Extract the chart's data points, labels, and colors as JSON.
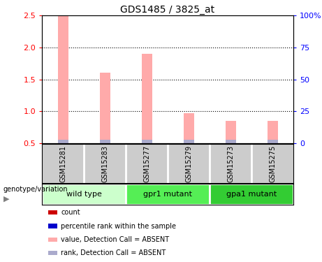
{
  "title": "GDS1485 / 3825_at",
  "samples": [
    "GSM15281",
    "GSM15283",
    "GSM15277",
    "GSM15279",
    "GSM15273",
    "GSM15275"
  ],
  "bar_values": [
    2.5,
    1.6,
    1.9,
    0.97,
    0.85,
    0.85
  ],
  "bar_color": "#ffaaaa",
  "rank_color": "#aaaacc",
  "ylim_left": [
    0.5,
    2.5
  ],
  "yticks_left": [
    0.5,
    1.0,
    1.5,
    2.0,
    2.5
  ],
  "ylim_right": [
    0,
    100
  ],
  "yticks_right": [
    0,
    25,
    50,
    75,
    100
  ],
  "yticklabels_right": [
    "0",
    "25",
    "50",
    "75",
    "100%"
  ],
  "groups": [
    {
      "label": "wild type",
      "indices": [
        0,
        1
      ],
      "color": "#ccffcc"
    },
    {
      "label": "gpr1 mutant",
      "indices": [
        2,
        3
      ],
      "color": "#55ee55"
    },
    {
      "label": "gpa1 mutant",
      "indices": [
        4,
        5
      ],
      "color": "#33cc33"
    }
  ],
  "legend_items": [
    {
      "color": "#cc0000",
      "label": "count"
    },
    {
      "color": "#0000cc",
      "label": "percentile rank within the sample"
    },
    {
      "color": "#ffaaaa",
      "label": "value, Detection Call = ABSENT"
    },
    {
      "color": "#aaaacc",
      "label": "rank, Detection Call = ABSENT"
    }
  ],
  "bar_width": 0.25,
  "rank_bar_height": 0.06,
  "grid_lines": [
    1.0,
    1.5,
    2.0
  ],
  "sample_label_bg": "#cccccc",
  "background_color": "#ffffff"
}
